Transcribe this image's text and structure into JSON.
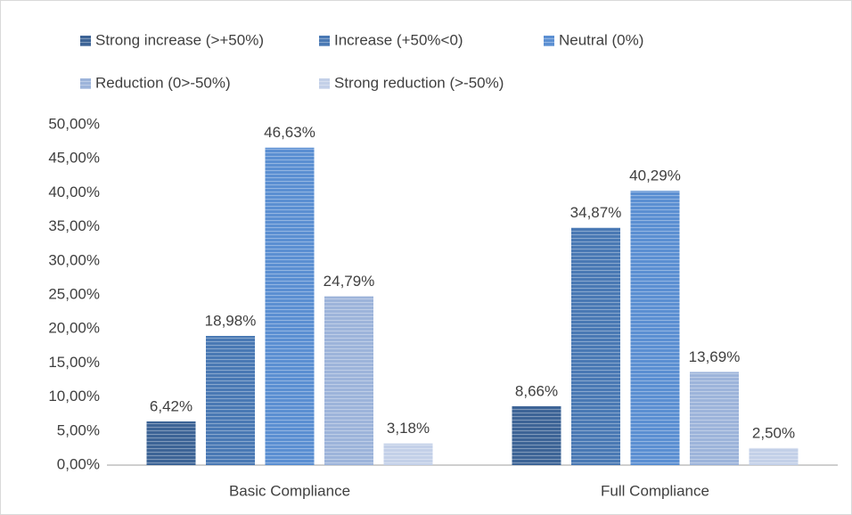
{
  "chart_data": {
    "type": "bar",
    "categories": [
      "Basic Compliance",
      "Full Compliance"
    ],
    "series": [
      {
        "name": "Strong increase (>+50%)",
        "color": "#3d6496",
        "values": [
          6.42,
          8.66
        ],
        "value_labels": [
          "6,42%",
          "8,66%"
        ]
      },
      {
        "name": "Increase (+50%<0)",
        "color": "#4a79b4",
        "values": [
          18.98,
          34.87
        ],
        "value_labels": [
          "18,98%",
          "34,87%"
        ]
      },
      {
        "name": "Neutral (0%)",
        "color": "#5b8fd2",
        "values": [
          46.63,
          40.29
        ],
        "value_labels": [
          "46,63%",
          "40,29%"
        ]
      },
      {
        "name": "Reduction (0>-50%)",
        "color": "#9db4da",
        "values": [
          24.79,
          13.69
        ],
        "value_labels": [
          "24,79%",
          "13,69%"
        ]
      },
      {
        "name": "Strong reduction (>-50%)",
        "color": "#c3d0e8",
        "values": [
          3.18,
          2.5
        ],
        "value_labels": [
          "3,18%",
          "2,50%"
        ]
      }
    ],
    "ylim": [
      0,
      50
    ],
    "yticks": [
      {
        "value": 0,
        "label": "0,00%"
      },
      {
        "value": 5,
        "label": "5,00%"
      },
      {
        "value": 10,
        "label": "10,00%"
      },
      {
        "value": 15,
        "label": "15,00%"
      },
      {
        "value": 20,
        "label": "20,00%"
      },
      {
        "value": 25,
        "label": "25,00%"
      },
      {
        "value": 30,
        "label": "30,00%"
      },
      {
        "value": 35,
        "label": "35,00%"
      },
      {
        "value": 40,
        "label": "40,00%"
      },
      {
        "value": 45,
        "label": "45,00%"
      },
      {
        "value": 50,
        "label": "50,00%"
      }
    ],
    "grid": false,
    "legend": "top"
  }
}
